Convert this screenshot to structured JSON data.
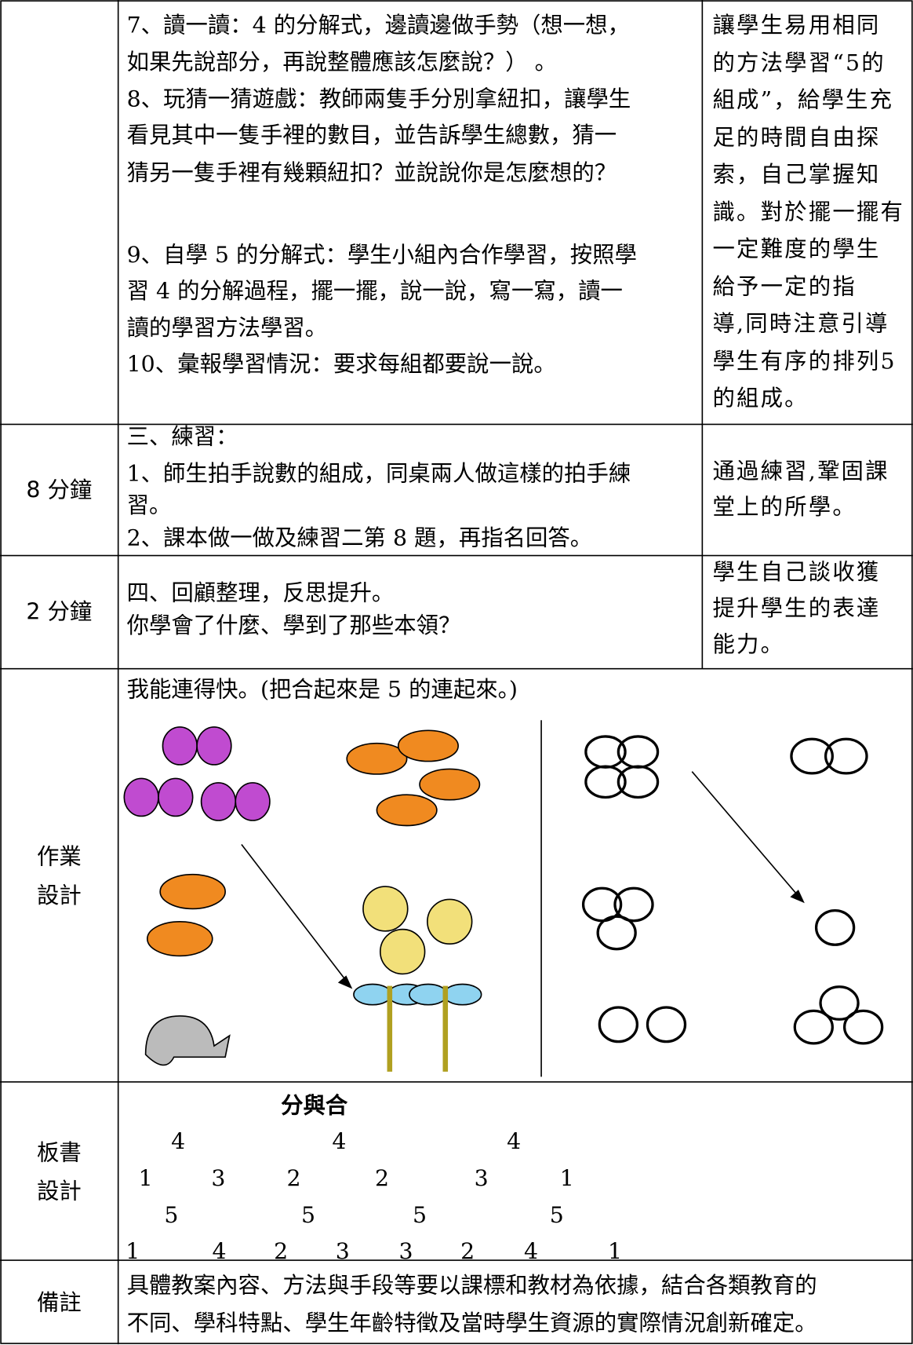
{
  "rows": [
    {
      "content": [
        "7、讀一讀：4 的分解式，邊讀邊做手勢（想一想，",
        "如果先說部分，再說整體應該怎麼說？）  。",
        "8、玩猜一猜遊戲：教師兩隻手分別拿紐扣，讓學生",
        "看見其中一隻手裡的數目，並告訴學生總數，猜一",
        "猜另一隻手裡有幾顆紐扣？並說說你是怎麼想的？",
        "9、自學 5 的分解式：學生小組內合作學習，按照學",
        "習 4 的分解過程，擺一擺，說一說，寫一寫，讀一",
        "讀的學習方法學習。",
        "10、彙報學習情況：要求每組都要說一說。"
      ],
      "purpose": [
        "讓學生易用相同",
        "的方法學習“5的",
        "組成”，給學生充",
        "足的時間自由探",
        "索，自己掌握知",
        "識。對於擺一擺有",
        "一定難度的學生",
        "給予一定的指",
        "導,同時注意引導",
        "學生有序的排列5",
        "的組成。"
      ]
    },
    {
      "time": "8 分鐘",
      "content": [
        "三、練習：",
        "1、師生拍手說數的組成，同桌兩人做這樣的拍手練",
        "習。",
        "2、課本做一做及練習二第 8 題，再指名回答。"
      ],
      "purpose": [
        "通過練習,鞏固課",
        "堂上的所學。"
      ]
    },
    {
      "time": "2 分鐘",
      "content": [
        "四、回顧整理，反思提升。",
        "你學會了什麼、學到了那些本領？"
      ],
      "purpose": [
        "學生自己談收獲",
        "提升學生的表達",
        "能力。"
      ]
    }
  ],
  "homework": {
    "time": [
      "作業",
      "設計"
    ],
    "heading": "我能連得快。(把合起來是 5 的連起來。)"
  },
  "board": {
    "time": [
      "板書",
      "設計"
    ],
    "title": "分與合",
    "rows": [
      [
        4,
        4,
        4
      ],
      [
        1,
        3,
        2,
        2,
        3,
        1
      ],
      [
        5,
        5,
        5,
        5
      ],
      [
        1,
        4,
        2,
        3,
        3,
        2,
        4,
        1
      ]
    ]
  },
  "notes": {
    "time": "備註",
    "lines": [
      "具體教案內容、方法與手段等要以課標和教材為依據，結合各類教育的",
      "不同、學科特點、學生年齡特徵及當時學生資源的實際情況創新確定。"
    ]
  }
}
